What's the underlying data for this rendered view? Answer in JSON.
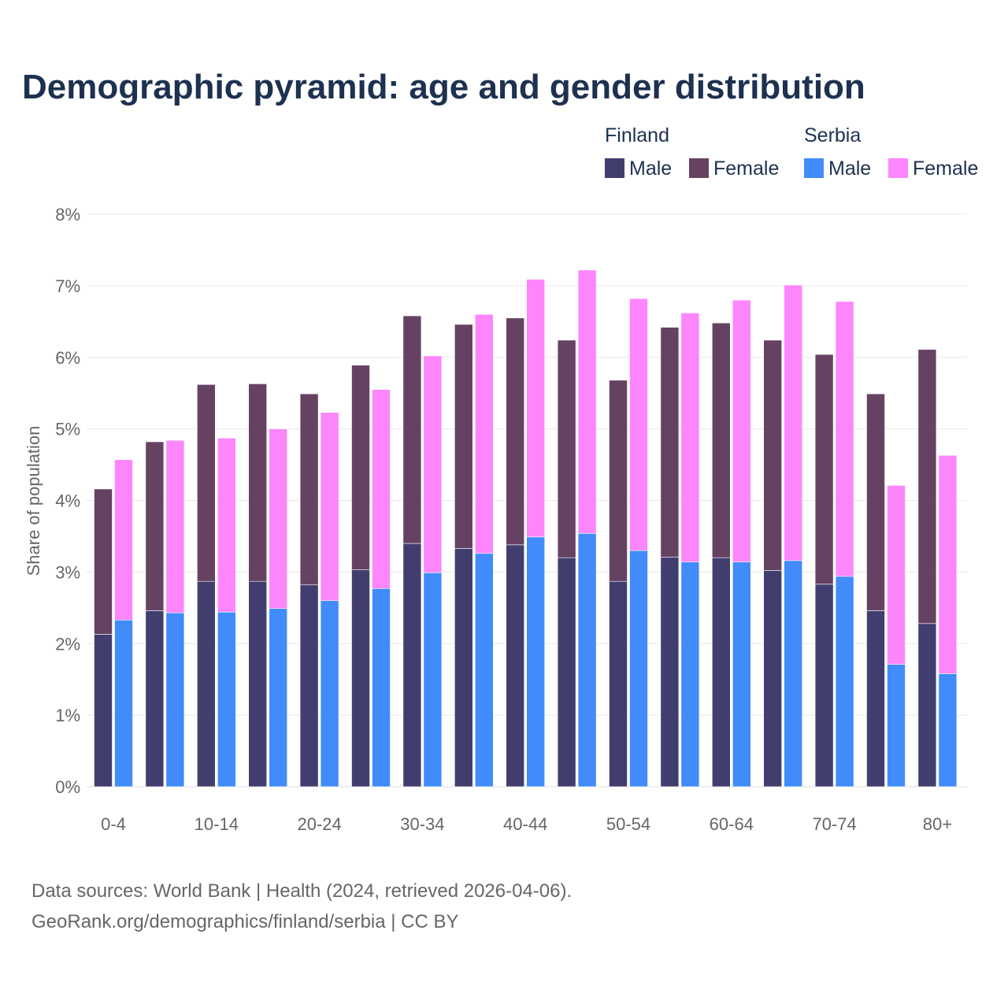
{
  "chart_data": {
    "type": "bar",
    "stacked": true,
    "title": "Demographic pyramid: age and gender distribution",
    "xlabel": "",
    "ylabel": "Share of population",
    "ylim": [
      0,
      8
    ],
    "yticks": [
      "0%",
      "1%",
      "2%",
      "3%",
      "4%",
      "5%",
      "6%",
      "7%",
      "8%"
    ],
    "grid": true,
    "legend_placement": "top-right",
    "categories": [
      "0-4",
      "5-9",
      "10-14",
      "15-19",
      "20-24",
      "25-29",
      "30-34",
      "35-39",
      "40-44",
      "45-49",
      "50-54",
      "55-59",
      "60-64",
      "65-69",
      "70-74",
      "75-79",
      "80+"
    ],
    "tick_labels": [
      "0-4",
      "",
      "10-14",
      "",
      "20-24",
      "",
      "30-34",
      "",
      "40-44",
      "",
      "50-54",
      "",
      "60-64",
      "",
      "70-74",
      "",
      "80+"
    ],
    "groups": [
      {
        "name": "Finland",
        "series": [
          {
            "name": "Male",
            "color": "#413e6f",
            "values": [
              2.13,
              2.46,
              2.87,
              2.87,
              2.82,
              3.03,
              3.4,
              3.33,
              3.38,
              3.2,
              2.87,
              3.21,
              3.2,
              3.02,
              2.83,
              2.46,
              2.28
            ]
          },
          {
            "name": "Female",
            "color": "#664262",
            "values": [
              2.03,
              2.36,
              2.75,
              2.76,
              2.67,
              2.86,
              3.18,
              3.13,
              3.17,
              3.04,
              2.81,
              3.21,
              3.28,
              3.22,
              3.21,
              3.03,
              3.83
            ]
          }
        ]
      },
      {
        "name": "Serbia",
        "series": [
          {
            "name": "Male",
            "color": "#418bfb",
            "values": [
              2.33,
              2.43,
              2.44,
              2.49,
              2.6,
              2.77,
              2.99,
              3.26,
              3.49,
              3.54,
              3.3,
              3.14,
              3.14,
              3.16,
              2.94,
              1.71,
              1.58
            ]
          },
          {
            "name": "Female",
            "color": "#fd86fc",
            "values": [
              2.24,
              2.41,
              2.43,
              2.51,
              2.63,
              2.78,
              3.03,
              3.34,
              3.6,
              3.68,
              3.52,
              3.48,
              3.66,
              3.85,
              3.84,
              2.5,
              3.05
            ]
          }
        ]
      }
    ]
  },
  "source_line1": "Data sources: World Bank | Health (2024, retrieved 2026-04-06).",
  "source_line2": "GeoRank.org/demographics/finland/serbia | CC BY"
}
